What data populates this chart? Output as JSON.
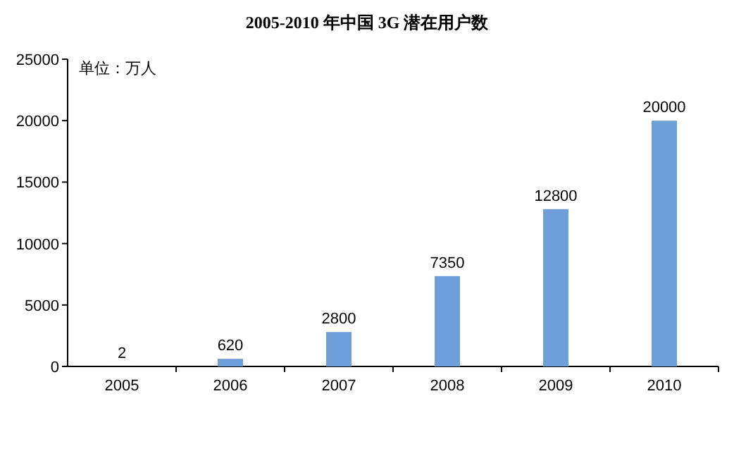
{
  "chart_data": {
    "type": "bar",
    "title": "2005-2010 年中国 3G 潜在用户数",
    "categories": [
      "2005",
      "2006",
      "2007",
      "2008",
      "2009",
      "2010"
    ],
    "values": [
      2,
      620,
      2800,
      7350,
      12800,
      20000
    ],
    "color": "#6f9fd8",
    "ylim": [
      0,
      25000
    ],
    "yticks": [
      0,
      5000,
      10000,
      15000,
      20000,
      25000
    ],
    "data_labels": true,
    "annotations": [
      "单位：万人"
    ]
  }
}
